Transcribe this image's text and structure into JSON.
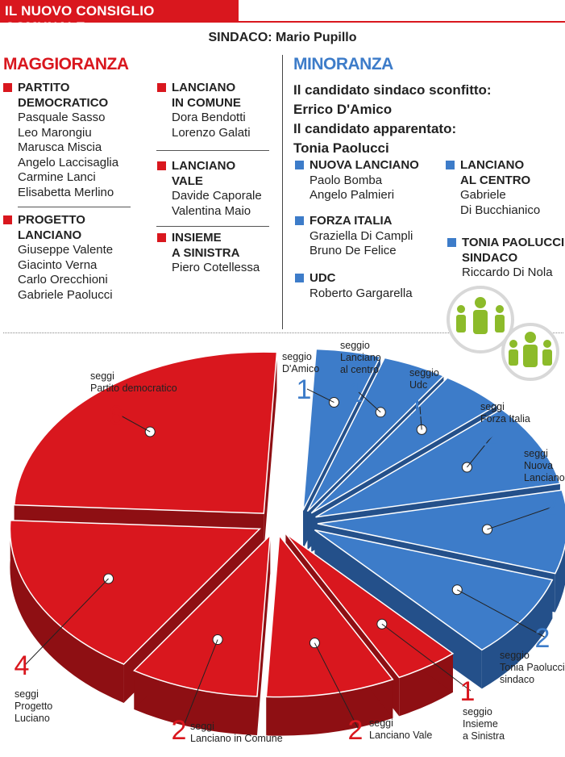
{
  "header": {
    "title": "IL NUOVO CONSIGLIO COMUNALE",
    "mayor": "SINDACO: Mario Pupillo"
  },
  "majority": {
    "heading": "MAGGIORANZA",
    "color": "#d9171e",
    "parties": [
      {
        "name": "PARTITO\nDEMOCRATICO",
        "members": [
          "Pasquale Sasso",
          "Leo Marongiu",
          "Marusca Miscia",
          "Angelo Laccisaglia",
          "Carmine Lanci",
          "Elisabetta Merlino"
        ]
      },
      {
        "name": "PROGETTO\nLANCIANO",
        "members": [
          "Giuseppe Valente",
          "Giacinto Verna",
          "Carlo Orecchioni",
          "Gabriele Paolucci"
        ]
      },
      {
        "name": "LANCIANO\nIN COMUNE",
        "members": [
          "Dora Bendotti",
          "Lorenzo Galati"
        ]
      },
      {
        "name": "LANCIANO\nVALE",
        "members": [
          "Davide Caporale",
          "Valentina Maio"
        ]
      },
      {
        "name": "INSIEME\nA SINISTRA",
        "members": [
          "Piero Cotellessa"
        ]
      }
    ]
  },
  "minority": {
    "heading": "MINORANZA",
    "color": "#3d7cc9",
    "defeated_label": "Il candidato sindaco sconfitto:",
    "defeated_name": "Errico D'Amico",
    "allied_label": "Il candidato apparentato:",
    "allied_name": "Tonia Paolucci",
    "parties": [
      {
        "name": "NUOVA LANCIANO",
        "members": [
          "Paolo Bomba",
          "Angelo Palmieri"
        ]
      },
      {
        "name": "FORZA ITALIA",
        "members": [
          "Graziella Di Campli",
          "Bruno De Felice"
        ]
      },
      {
        "name": "UDC",
        "members": [
          "Roberto Gargarella"
        ]
      },
      {
        "name": "LANCIANO\nAL CENTRO",
        "members": [
          "Gabriele",
          "Di Bucchianico"
        ]
      },
      {
        "name": "TONIA PAOLUCCI\nSINDACO",
        "members": [
          "Riccardo Di Nola"
        ]
      }
    ]
  },
  "chart_data": {
    "type": "pie",
    "title": "",
    "unit": "seggi",
    "slices": [
      {
        "label": "Partito democratico",
        "value": 6,
        "group": "maggioranza",
        "color": "#d9171e"
      },
      {
        "label": "Progetto Luciano",
        "value": 4,
        "group": "maggioranza",
        "color": "#d9171e"
      },
      {
        "label": "Lanciano in Comune",
        "value": 2,
        "group": "maggioranza",
        "color": "#d9171e"
      },
      {
        "label": "Lanciano Vale",
        "value": 2,
        "group": "maggioranza",
        "color": "#d9171e"
      },
      {
        "label": "Insieme a Sinistra",
        "value": 1,
        "group": "maggioranza",
        "color": "#d9171e"
      },
      {
        "label": "Tonia Paolucci sindaco",
        "value": 2,
        "group": "minoranza",
        "color": "#3d7cc9"
      },
      {
        "label": "Nuova Lanciano",
        "value": 2,
        "group": "minoranza",
        "color": "#3d7cc9"
      },
      {
        "label": "Forza Italia",
        "value": 2,
        "group": "minoranza",
        "color": "#3d7cc9"
      },
      {
        "label": "Udc",
        "value": 1,
        "group": "minoranza",
        "color": "#3d7cc9"
      },
      {
        "label": "Lanciano al centro",
        "value": 1,
        "group": "minoranza",
        "color": "#3d7cc9"
      },
      {
        "label": "D'Amico",
        "value": 1,
        "group": "minoranza",
        "color": "#3d7cc9"
      }
    ]
  }
}
